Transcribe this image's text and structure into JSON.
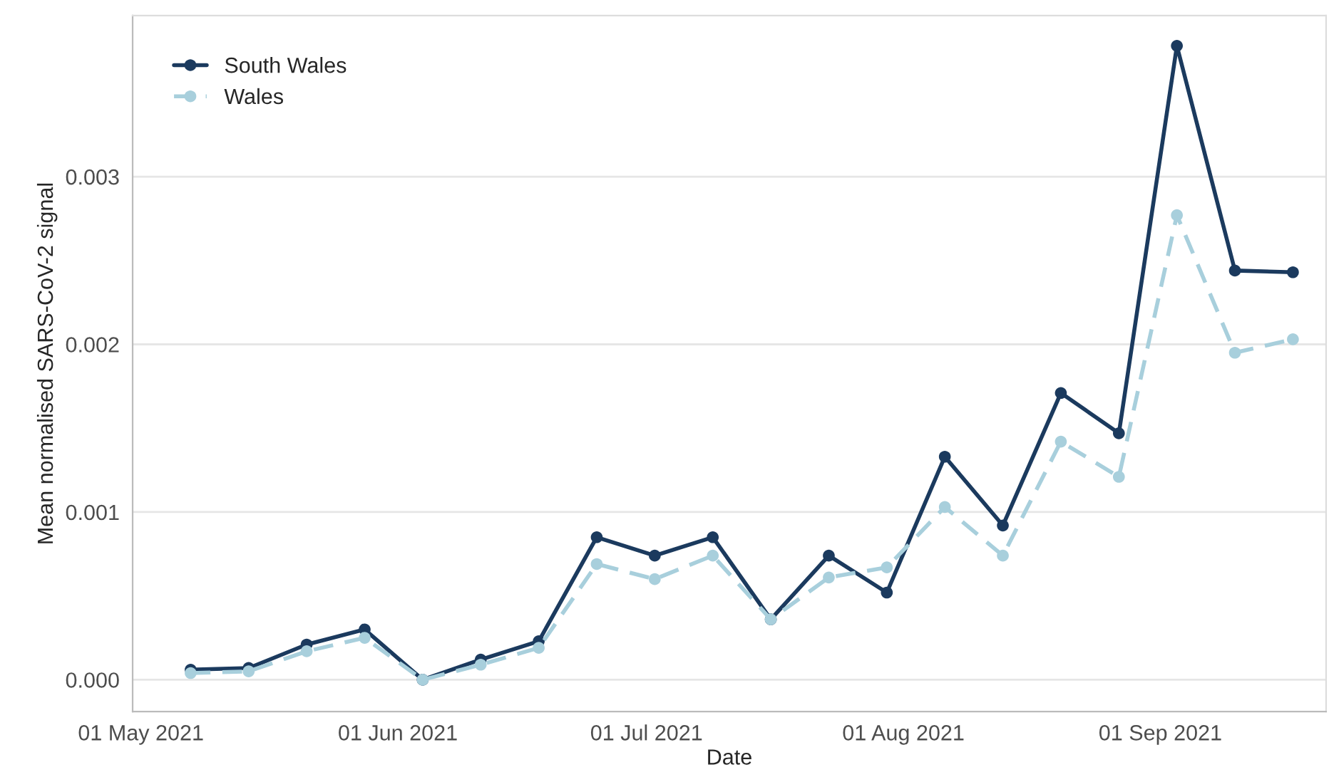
{
  "chart_data": {
    "type": "line",
    "xlabel": "Date",
    "ylabel": "Mean normalised SARS-CoV-2 signal",
    "x": [
      "2021-05-07",
      "2021-05-14",
      "2021-05-21",
      "2021-05-28",
      "2021-06-04",
      "2021-06-11",
      "2021-06-18",
      "2021-06-25",
      "2021-07-02",
      "2021-07-09",
      "2021-07-16",
      "2021-07-23",
      "2021-07-30",
      "2021-08-06",
      "2021-08-13",
      "2021-08-20",
      "2021-08-27",
      "2021-09-03",
      "2021-09-10",
      "2021-09-17"
    ],
    "series": [
      {
        "name": "South Wales",
        "color": "#1b3a5e",
        "line_style": "solid",
        "values": [
          6e-05,
          7e-05,
          0.00021,
          0.0003,
          0.0,
          0.00012,
          0.00023,
          0.00085,
          0.00074,
          0.00085,
          0.00036,
          0.00074,
          0.00052,
          0.00133,
          0.00092,
          0.00171,
          0.00147,
          0.00378,
          0.00244,
          0.00243
        ]
      },
      {
        "name": "Wales",
        "color": "#a8cfdc",
        "line_style": "dashed",
        "values": [
          4e-05,
          5e-05,
          0.00017,
          0.00025,
          0.0,
          9e-05,
          0.00019,
          0.00069,
          0.0006,
          0.00074,
          0.00036,
          0.00061,
          0.00067,
          0.00103,
          0.00074,
          0.00142,
          0.00121,
          0.00277,
          0.00195,
          0.00203
        ]
      }
    ],
    "xlim": [
      "2021-04-30",
      "2021-09-21"
    ],
    "xticks": [
      {
        "value": "2021-05-01",
        "label": "01 May 2021"
      },
      {
        "value": "2021-06-01",
        "label": "01 Jun 2021"
      },
      {
        "value": "2021-07-01",
        "label": "01 Jul 2021"
      },
      {
        "value": "2021-08-01",
        "label": "01 Aug 2021"
      },
      {
        "value": "2021-09-01",
        "label": "01 Sep 2021"
      }
    ],
    "ylim": [
      -0.00019,
      0.00396
    ],
    "yticks": [
      {
        "value": 0,
        "label": "0.000"
      },
      {
        "value": 0.001,
        "label": "0.001"
      },
      {
        "value": 0.002,
        "label": "0.002"
      },
      {
        "value": 0.003,
        "label": "0.003"
      }
    ],
    "grid": "y",
    "legend": "top left",
    "marker": "circle"
  }
}
